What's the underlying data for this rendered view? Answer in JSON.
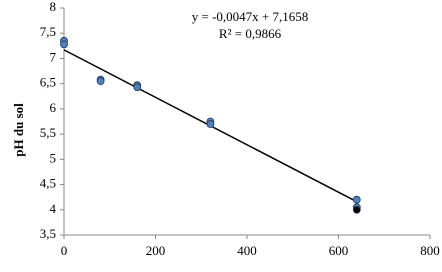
{
  "chart_data": {
    "type": "scatter",
    "y_label": "pH du sol",
    "annotations": [
      "y = -0,0047x + 7,1658",
      "R² = 0,9866"
    ],
    "xlim": [
      0,
      800
    ],
    "xticks": [
      0,
      200,
      400,
      600,
      800
    ],
    "ylim": [
      3.5,
      8
    ],
    "yticks": [
      {
        "value": 3.5,
        "label": "3,5"
      },
      4,
      {
        "value": 4.5,
        "label": "4,5"
      },
      5,
      {
        "value": 5.5,
        "label": "5,5"
      },
      6,
      {
        "value": 6.5,
        "label": "6,5"
      },
      7,
      {
        "value": 7.5,
        "label": "7,5"
      },
      8
    ],
    "grid": false,
    "series": [
      {
        "color": "#4f81bd",
        "x": [
          0,
          0,
          80,
          80,
          160,
          160,
          320,
          320,
          640,
          640
        ],
        "values": [
          7.35,
          7.28,
          6.58,
          6.55,
          6.47,
          6.43,
          5.75,
          5.7,
          4.2,
          4.05
        ]
      },
      {
        "color": "#000000",
        "x": [
          640
        ],
        "values": [
          4.0
        ]
      }
    ],
    "trendline": {
      "color": "#000000",
      "x": [
        0,
        640
      ],
      "values": [
        7.17,
        4.16
      ]
    }
  }
}
